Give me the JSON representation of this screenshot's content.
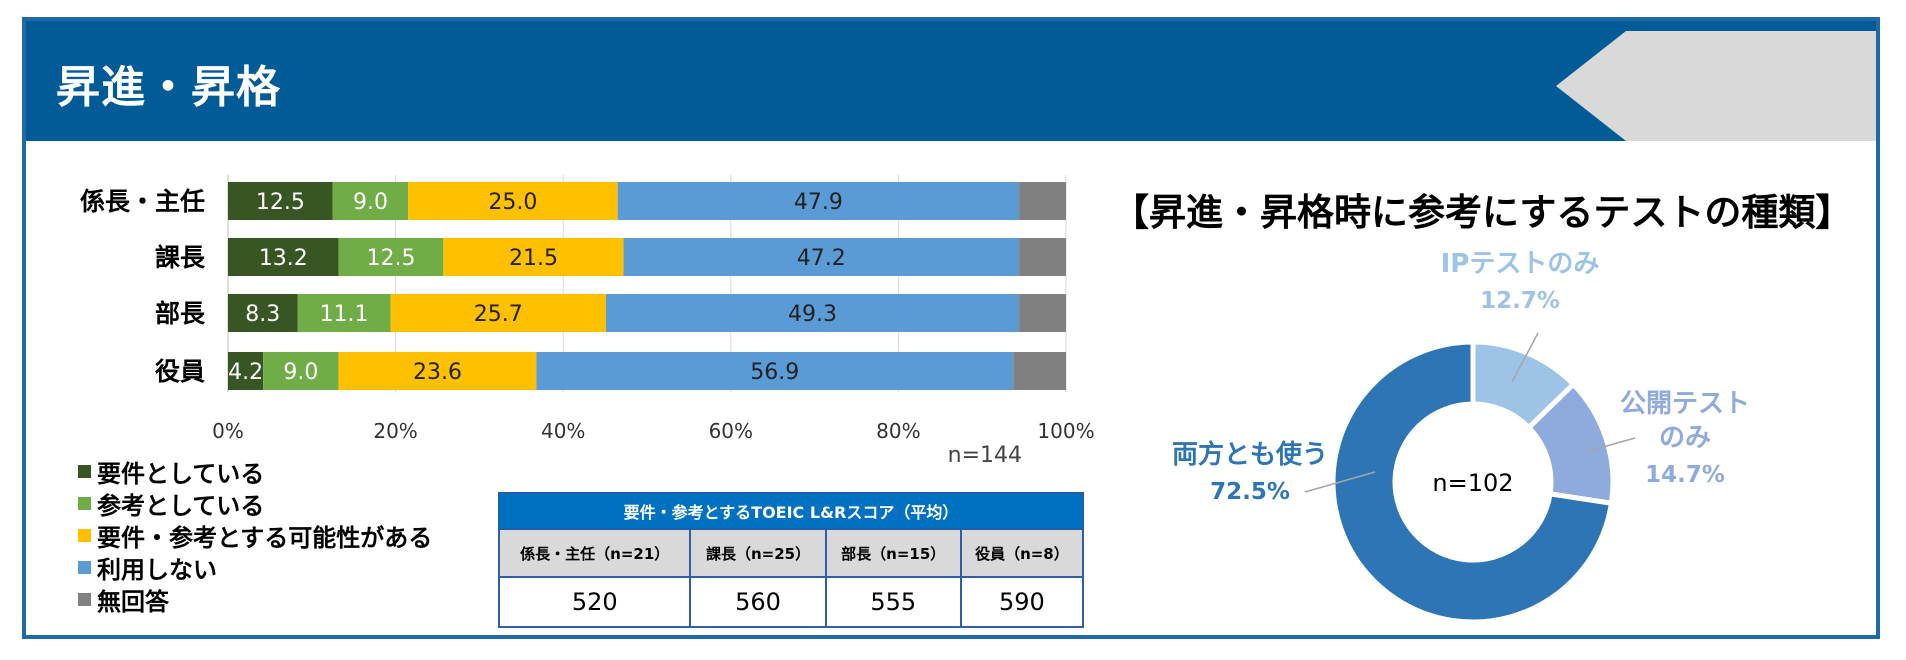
{
  "header": {
    "title": "昇進・昇格"
  },
  "bar_chart": {
    "sample_note": "n=144",
    "legend": [
      "要件としている",
      "参考としている",
      "要件・参考とする可能性がある",
      "利用しない",
      "無回答"
    ]
  },
  "score_table": {
    "caption": "要件・参考とするTOEIC L&Rスコア（平均）",
    "headers": [
      "係長・主任（n=21）",
      "課長（n=25）",
      "部長（n=15）",
      "役員（n=8）"
    ],
    "values": [
      "520",
      "560",
      "555",
      "590"
    ]
  },
  "pie_chart": {
    "title": "【昇進・昇格時に参考にするテストの種類】",
    "center_label": "n=102"
  },
  "colors": {
    "header_bg": "#005b96",
    "series": [
      "#375623",
      "#70ad47",
      "#ffc000",
      "#5b9bd5",
      "#808080"
    ],
    "pie": [
      "#9dc3e6",
      "#8faadc",
      "#2e75b6"
    ]
  },
  "chart_data": [
    {
      "type": "bar",
      "orientation": "horizontal",
      "stacked": true,
      "categories": [
        "係長・主任",
        "課長",
        "部長",
        "役員"
      ],
      "series": [
        {
          "name": "要件としている",
          "values": [
            12.5,
            13.2,
            8.3,
            4.2
          ],
          "labels": [
            "12.5",
            "13.2",
            "8.3",
            "4.2"
          ]
        },
        {
          "name": "参考としている",
          "values": [
            9.0,
            12.5,
            11.1,
            9.0
          ],
          "labels": [
            "9.0",
            "12.5",
            "11.1",
            "9.0"
          ]
        },
        {
          "name": "要件・参考とする可能性がある",
          "values": [
            25.0,
            21.5,
            25.7,
            23.6
          ],
          "labels": [
            "25.0",
            "21.5",
            "25.7",
            "23.6"
          ]
        },
        {
          "name": "利用しない",
          "values": [
            47.9,
            47.2,
            49.3,
            56.9
          ],
          "labels": [
            "47.9",
            "47.2",
            "49.3",
            "56.9"
          ]
        },
        {
          "name": "無回答",
          "values": [
            5.6,
            5.6,
            5.6,
            6.3
          ]
        }
      ],
      "xticks": [
        "0%",
        "20%",
        "40%",
        "60%",
        "80%",
        "100%"
      ],
      "xlim": [
        0,
        100
      ],
      "grid": true,
      "legend_position": "bottom-left"
    },
    {
      "type": "pie",
      "donut": true,
      "slices": [
        {
          "name": "IPテストのみ",
          "value": 12.7,
          "label": "12.7%"
        },
        {
          "name": "公開テスト\nのみ",
          "value": 14.7,
          "label": "14.7%"
        },
        {
          "name": "両方とも使う",
          "value": 72.5,
          "label": "72.5%"
        }
      ]
    }
  ]
}
